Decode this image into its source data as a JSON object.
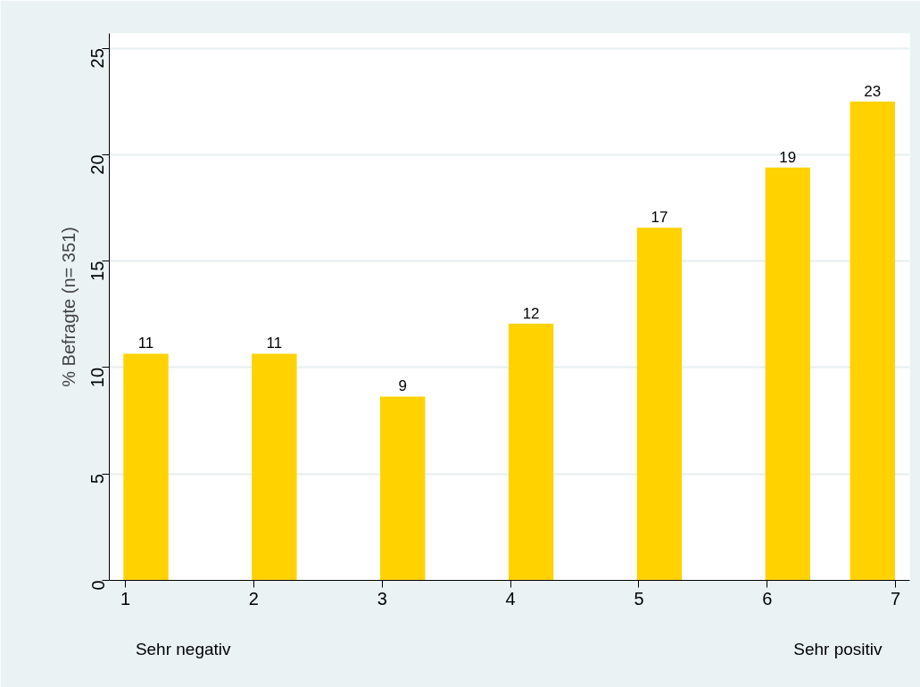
{
  "chart_data": {
    "type": "bar",
    "ylabel": "% Befragte (n= 351)",
    "x": [
      1.16,
      2.16,
      3.16,
      4.16,
      5.16,
      6.16,
      6.82
    ],
    "values": [
      10.65,
      10.65,
      8.64,
      12.06,
      16.57,
      19.4,
      22.5
    ],
    "value_labels": [
      "11",
      "11",
      "9",
      "12",
      "17",
      "19",
      "23"
    ],
    "color": "#ffd200",
    "xlim": [
      0.875,
      7.11
    ],
    "xticks": [
      1,
      2,
      3,
      4,
      5,
      6,
      7
    ],
    "ylim": [
      0,
      25.7
    ],
    "yticks": [
      0,
      5,
      10,
      15,
      20,
      25
    ],
    "grid": "y",
    "annotations": [
      "Sehr negativ",
      "Sehr positiv"
    ]
  }
}
